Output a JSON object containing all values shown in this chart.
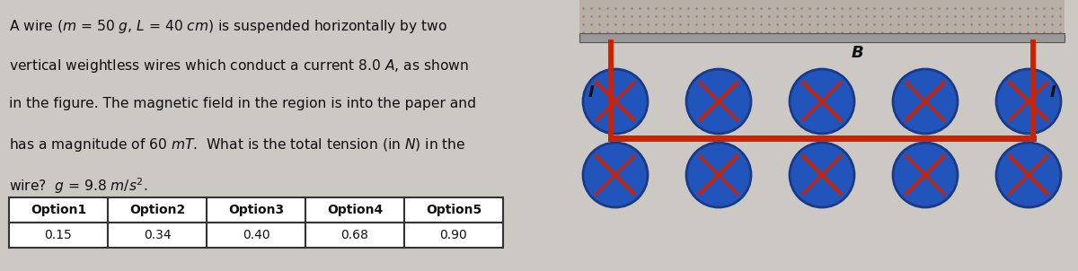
{
  "bg_color": "#ccc8c4",
  "text_color": "#111111",
  "wire_color": "#cc2200",
  "support_color": "#999999",
  "circle_fill": "#2255bb",
  "circle_edge": "#1a3a88",
  "x_color": "#cc2200",
  "dot_color": "#9a8878",
  "dot_bg": "#b8b0a8",
  "label_I": "I",
  "label_B": "B",
  "table_headers": [
    "Option1",
    "Option2",
    "Option3",
    "Option4",
    "Option5"
  ],
  "table_values": [
    "0.15",
    "0.34",
    "0.40",
    "0.68",
    "0.90"
  ],
  "line1": "A wire ($m$ = 50 $g$, $L$ = 40 $cm$) is suspended horizontally by two",
  "line2": "vertical weightless wires which conduct a current 8.0 $A$, as shown",
  "line3": "in the figure. The magnetic field in the region is into the paper and",
  "line4": "has a magnitude of 60 $mT$.  What is the total tension (in $N$) in the",
  "line5": "wire?  $g$ = 9.8 $m$/$s^2$."
}
